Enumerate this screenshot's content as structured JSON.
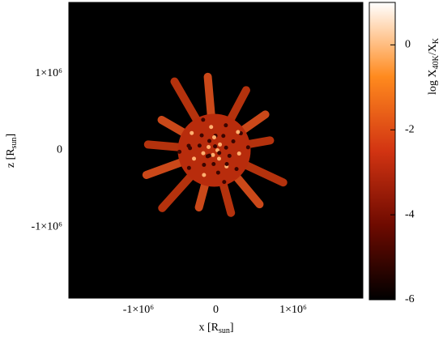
{
  "chart_data": {
    "type": "heatmap",
    "xlabel": {
      "text": "x [R",
      "sub": "sun",
      "end": "]"
    },
    "ylabel": {
      "text": "z [R",
      "sub": "sun",
      "end": "]"
    },
    "colorbar_label": {
      "text": "log X",
      "sub": "40K",
      "mid": "/X",
      "sub2": "K"
    },
    "xlim": [
      -1900000,
      1900000
    ],
    "ylim": [
      -1930000,
      1930000
    ],
    "xticks": [
      {
        "value": -1000000,
        "label": "-1×10⁶"
      },
      0,
      {
        "value": 1000000,
        "label": "1×10⁶"
      }
    ],
    "yticks": [
      {
        "value": -1000000,
        "label": "-1×10⁶"
      },
      0,
      {
        "value": 1000000,
        "label": "1×10⁶"
      }
    ],
    "clim": [
      -6,
      1
    ],
    "cticks": [
      -6,
      -4,
      -2,
      0
    ],
    "colormap": [
      "#000000",
      "#6e0a00",
      "#d23412",
      "#ff8a1e",
      "#ffffff"
    ],
    "background": "#000000"
  }
}
